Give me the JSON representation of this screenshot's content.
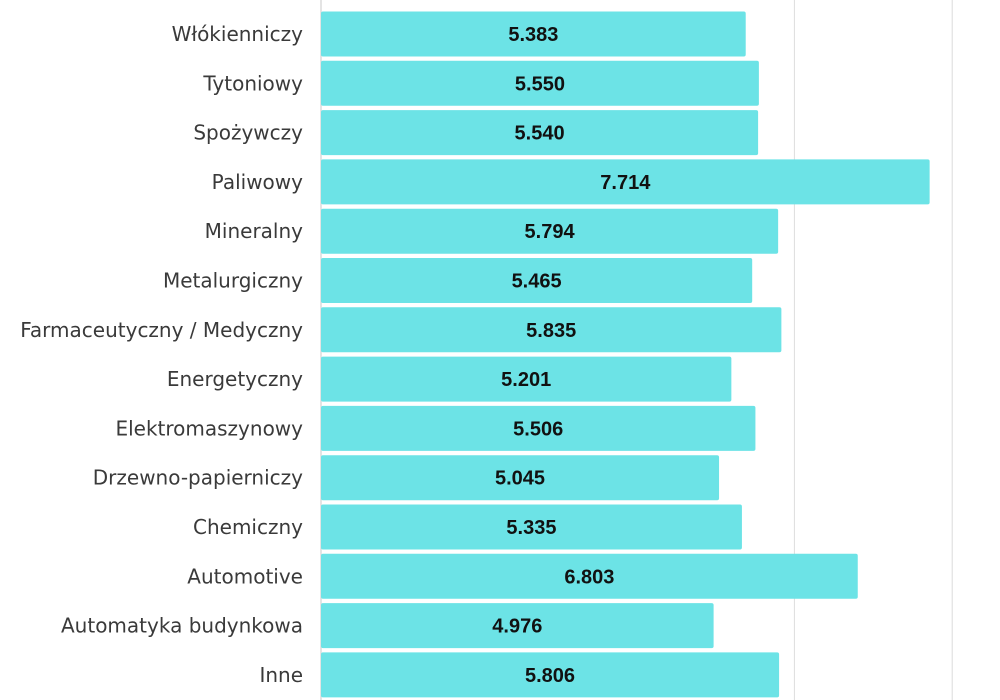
{
  "chart_data": {
    "type": "bar",
    "orientation": "horizontal",
    "categories": [
      "Włókienniczy",
      "Tytoniowy",
      "Spożywczy",
      "Paliwowy",
      "Mineralny",
      "Metalurgiczny",
      "Farmaceutyczny / Medyczny",
      "Energetyczny",
      "Elektromaszynowy",
      "Drzewno-papierniczy",
      "Chemiczny",
      "Automotive",
      "Automatyka budynkowa",
      "Inne"
    ],
    "values": [
      5383,
      5550,
      5540,
      7714,
      5794,
      5465,
      5835,
      5201,
      5506,
      5045,
      5335,
      6803,
      4976,
      5806
    ],
    "value_labels": [
      "5.383",
      "5.550",
      "5.540",
      "7.714",
      "5.794",
      "5.465",
      "5.835",
      "5.201",
      "5.506",
      "5.045",
      "5.335",
      "6.803",
      "4.976",
      "5.806"
    ],
    "xlim": [
      0,
      8000
    ],
    "gridlines": [
      6000,
      8000
    ],
    "grid": true,
    "bar_color": "#6ce3e6",
    "title": "",
    "xlabel": "",
    "ylabel": ""
  }
}
